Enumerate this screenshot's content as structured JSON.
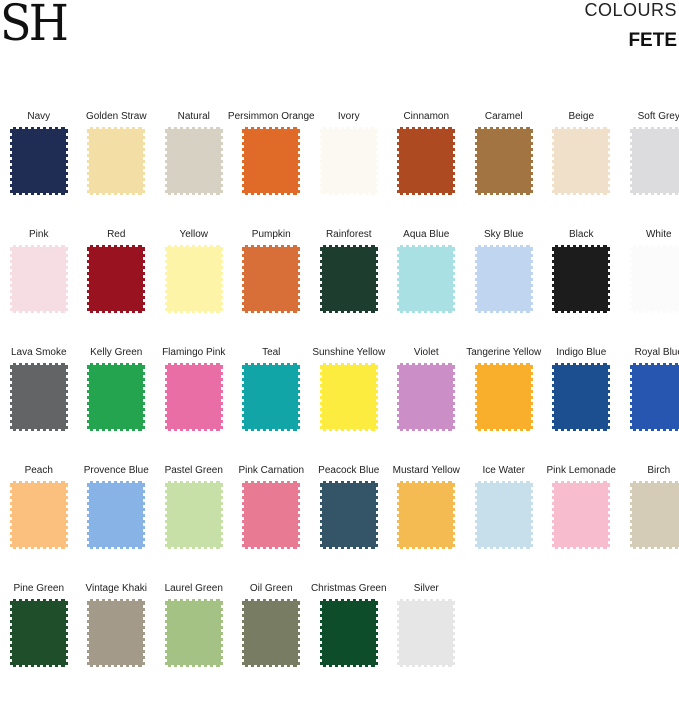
{
  "brand": {
    "logo": "SH"
  },
  "header": {
    "title": "COLOURS",
    "collection": "FETE"
  },
  "swatches": [
    {
      "name": "Navy",
      "color": "#1f2d55"
    },
    {
      "name": "Golden Straw",
      "color": "#f3dfa6"
    },
    {
      "name": "Natural",
      "color": "#d6d1c3"
    },
    {
      "name": "Persimmon Orange",
      "color": "#e06a27"
    },
    {
      "name": "Ivory",
      "color": "#fbf9f2"
    },
    {
      "name": "Cinnamon",
      "color": "#ad4a22"
    },
    {
      "name": "Caramel",
      "color": "#a27442"
    },
    {
      "name": "Beige",
      "color": "#f0dfc9"
    },
    {
      "name": "Soft Grey",
      "color": "#dcdcde"
    },
    {
      "name": "Pink",
      "color": "#f6dce3"
    },
    {
      "name": "Red",
      "color": "#99121f"
    },
    {
      "name": "Yellow",
      "color": "#fdf4a8"
    },
    {
      "name": "Pumpkin",
      "color": "#d86f38"
    },
    {
      "name": "Rainforest",
      "color": "#1d3e2f"
    },
    {
      "name": "Aqua Blue",
      "color": "#a9e0e3"
    },
    {
      "name": "Sky Blue",
      "color": "#c0d6f0"
    },
    {
      "name": "Black",
      "color": "#1c1c1c"
    },
    {
      "name": "White",
      "color": "#fbfbfb"
    },
    {
      "name": "Lava Smoke",
      "color": "#626466"
    },
    {
      "name": "Kelly Green",
      "color": "#25a450"
    },
    {
      "name": "Flamingo Pink",
      "color": "#e86ea5"
    },
    {
      "name": "Teal",
      "color": "#11a5a8"
    },
    {
      "name": "Sunshine Yellow",
      "color": "#fcec3f"
    },
    {
      "name": "Violet",
      "color": "#cc8ec6"
    },
    {
      "name": "Tangerine Yellow",
      "color": "#f9ae2c"
    },
    {
      "name": "Indigo Blue",
      "color": "#1c4f8f"
    },
    {
      "name": "Royal Blue",
      "color": "#2656b0"
    },
    {
      "name": "Peach",
      "color": "#fcc07e"
    },
    {
      "name": "Provence Blue",
      "color": "#88b3e6"
    },
    {
      "name": "Pastel Green",
      "color": "#c6e0a8"
    },
    {
      "name": "Pink Carnation",
      "color": "#e97a93"
    },
    {
      "name": "Peacock Blue",
      "color": "#345467"
    },
    {
      "name": "Mustard Yellow",
      "color": "#f3bb52"
    },
    {
      "name": "Ice Water",
      "color": "#c7dfeb"
    },
    {
      "name": "Pink Lemonade",
      "color": "#f7bccd"
    },
    {
      "name": "Birch",
      "color": "#d4ccb7"
    },
    {
      "name": "Pine Green",
      "color": "#1f4e2b"
    },
    {
      "name": "Vintage Khaki",
      "color": "#a49a89"
    },
    {
      "name": "Laurel Green",
      "color": "#a3c283"
    },
    {
      "name": "Oil Green",
      "color": "#777c63"
    },
    {
      "name": "Christmas Green",
      "color": "#0d4d2a"
    },
    {
      "name": "Silver",
      "color": "#e6e6e6"
    }
  ]
}
